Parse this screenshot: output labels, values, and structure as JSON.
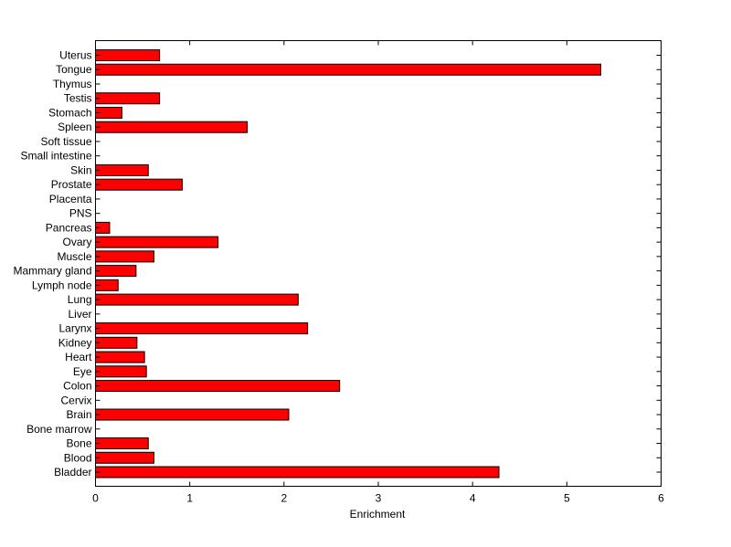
{
  "chart_data": {
    "type": "bar",
    "orientation": "horizontal",
    "title": "",
    "xlabel": "Enrichment",
    "ylabel": "",
    "xlim": [
      0,
      6
    ],
    "xticks": [
      "0",
      "1",
      "2",
      "3",
      "4",
      "5",
      "6"
    ],
    "grid": false,
    "bar_color": "#ff0000",
    "bar_edge_color": "#000000",
    "categories": [
      "Bladder",
      "Blood",
      "Bone",
      "Bone marrow",
      "Brain",
      "Cervix",
      "Colon",
      "Eye",
      "Heart",
      "Kidney",
      "Larynx",
      "Liver",
      "Lung",
      "Lymph node",
      "Mammary gland",
      "Muscle",
      "Ovary",
      "Pancreas",
      "PNS",
      "Placenta",
      "Prostate",
      "Skin",
      "Small intestine",
      "Soft tissue",
      "Spleen",
      "Stomach",
      "Testis",
      "Thymus",
      "Tongue",
      "Uterus"
    ],
    "values": [
      4.28,
      0.62,
      0.56,
      0,
      2.05,
      0,
      2.59,
      0.54,
      0.52,
      0.44,
      2.25,
      0,
      2.15,
      0.24,
      0.43,
      0.62,
      1.3,
      0.15,
      0,
      0,
      0.92,
      0.56,
      0,
      0,
      1.61,
      0.28,
      0.68,
      0,
      5.36,
      0.68
    ]
  }
}
